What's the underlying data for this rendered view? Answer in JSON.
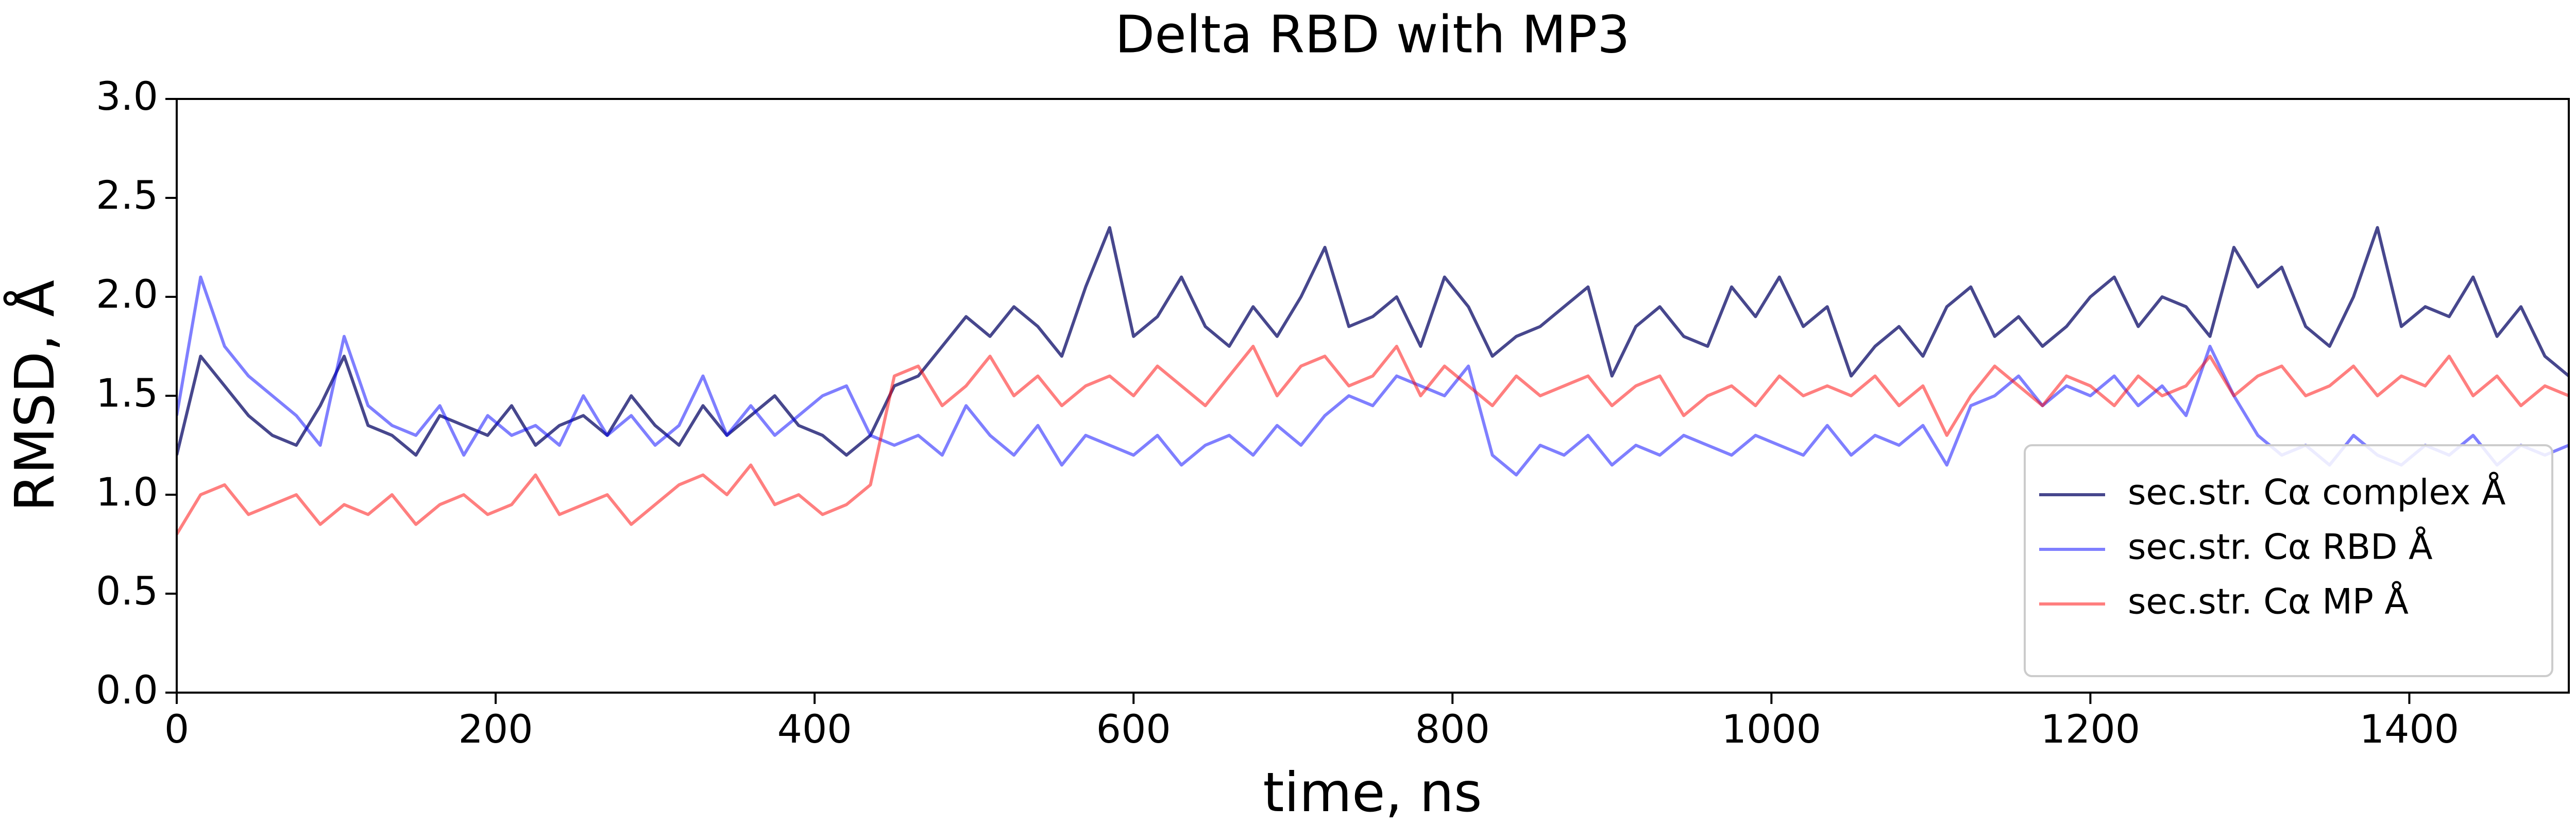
{
  "chart_data": {
    "type": "line",
    "title": "Delta RBD with MP3",
    "x_label": "time, ns",
    "y_label": "RMSD, Å",
    "x": [
      0,
      15,
      30,
      45,
      60,
      75,
      90,
      105,
      120,
      135,
      150,
      165,
      180,
      195,
      210,
      225,
      240,
      255,
      270,
      285,
      300,
      315,
      330,
      345,
      360,
      375,
      390,
      405,
      420,
      435,
      450,
      465,
      480,
      495,
      510,
      525,
      540,
      555,
      570,
      585,
      600,
      615,
      630,
      645,
      660,
      675,
      690,
      705,
      720,
      735,
      750,
      765,
      780,
      795,
      810,
      825,
      840,
      855,
      870,
      885,
      900,
      915,
      930,
      945,
      960,
      975,
      990,
      1005,
      1020,
      1035,
      1050,
      1065,
      1080,
      1095,
      1110,
      1125,
      1140,
      1155,
      1170,
      1185,
      1200,
      1215,
      1230,
      1245,
      1260,
      1275,
      1290,
      1305,
      1320,
      1335,
      1350,
      1365,
      1380,
      1395,
      1410,
      1425,
      1440,
      1455,
      1470,
      1485,
      1500
    ],
    "series": [
      {
        "name": "sec.str. Cα complex Å",
        "color": "#191970",
        "alpha": 0.8,
        "values": [
          1.2,
          1.7,
          1.55,
          1.4,
          1.3,
          1.25,
          1.45,
          1.7,
          1.35,
          1.3,
          1.2,
          1.4,
          1.35,
          1.3,
          1.45,
          1.25,
          1.35,
          1.4,
          1.3,
          1.5,
          1.35,
          1.25,
          1.45,
          1.3,
          1.4,
          1.5,
          1.35,
          1.3,
          1.2,
          1.3,
          1.55,
          1.6,
          1.75,
          1.9,
          1.8,
          1.95,
          1.85,
          1.7,
          2.05,
          2.35,
          1.8,
          1.9,
          2.1,
          1.85,
          1.75,
          1.95,
          1.8,
          2.0,
          2.25,
          1.85,
          1.9,
          2.0,
          1.75,
          2.1,
          1.95,
          1.7,
          1.8,
          1.85,
          1.95,
          2.05,
          1.6,
          1.85,
          1.95,
          1.8,
          1.75,
          2.05,
          1.9,
          2.1,
          1.85,
          1.95,
          1.6,
          1.75,
          1.85,
          1.7,
          1.95,
          2.05,
          1.8,
          1.9,
          1.75,
          1.85,
          2.0,
          2.1,
          1.85,
          2.0,
          1.95,
          1.8,
          2.25,
          2.05,
          2.15,
          1.85,
          1.75,
          2.0,
          2.35,
          1.85,
          1.95,
          1.9,
          2.1,
          1.8,
          1.95,
          1.7,
          1.6
        ]
      },
      {
        "name": "sec.str. Cα RBD Å",
        "color": "#0000ff",
        "alpha": 0.5,
        "values": [
          1.4,
          2.1,
          1.75,
          1.6,
          1.5,
          1.4,
          1.25,
          1.8,
          1.45,
          1.35,
          1.3,
          1.45,
          1.2,
          1.4,
          1.3,
          1.35,
          1.25,
          1.5,
          1.3,
          1.4,
          1.25,
          1.35,
          1.6,
          1.3,
          1.45,
          1.3,
          1.4,
          1.5,
          1.55,
          1.3,
          1.25,
          1.3,
          1.2,
          1.45,
          1.3,
          1.2,
          1.35,
          1.15,
          1.3,
          1.25,
          1.2,
          1.3,
          1.15,
          1.25,
          1.3,
          1.2,
          1.35,
          1.25,
          1.4,
          1.5,
          1.45,
          1.6,
          1.55,
          1.5,
          1.65,
          1.2,
          1.1,
          1.25,
          1.2,
          1.3,
          1.15,
          1.25,
          1.2,
          1.3,
          1.25,
          1.2,
          1.3,
          1.25,
          1.2,
          1.35,
          1.2,
          1.3,
          1.25,
          1.35,
          1.15,
          1.45,
          1.5,
          1.6,
          1.45,
          1.55,
          1.5,
          1.6,
          1.45,
          1.55,
          1.4,
          1.75,
          1.5,
          1.3,
          1.2,
          1.25,
          1.15,
          1.3,
          1.2,
          1.15,
          1.25,
          1.2,
          1.3,
          1.15,
          1.25,
          1.2,
          1.25
        ]
      },
      {
        "name": "sec.str. Cα MP Å",
        "color": "#ff0000",
        "alpha": 0.5,
        "values": [
          0.8,
          1.0,
          1.05,
          0.9,
          0.95,
          1.0,
          0.85,
          0.95,
          0.9,
          1.0,
          0.85,
          0.95,
          1.0,
          0.9,
          0.95,
          1.1,
          0.9,
          0.95,
          1.0,
          0.85,
          0.95,
          1.05,
          1.1,
          1.0,
          1.15,
          0.95,
          1.0,
          0.9,
          0.95,
          1.05,
          1.6,
          1.65,
          1.45,
          1.55,
          1.7,
          1.5,
          1.6,
          1.45,
          1.55,
          1.6,
          1.5,
          1.65,
          1.55,
          1.45,
          1.6,
          1.75,
          1.5,
          1.65,
          1.7,
          1.55,
          1.6,
          1.75,
          1.5,
          1.65,
          1.55,
          1.45,
          1.6,
          1.5,
          1.55,
          1.6,
          1.45,
          1.55,
          1.6,
          1.4,
          1.5,
          1.55,
          1.45,
          1.6,
          1.5,
          1.55,
          1.5,
          1.6,
          1.45,
          1.55,
          1.3,
          1.5,
          1.65,
          1.55,
          1.45,
          1.6,
          1.55,
          1.45,
          1.6,
          1.5,
          1.55,
          1.7,
          1.5,
          1.6,
          1.65,
          1.5,
          1.55,
          1.65,
          1.5,
          1.6,
          1.55,
          1.7,
          1.5,
          1.6,
          1.45,
          1.55,
          1.5
        ]
      }
    ],
    "xlim": [
      0,
      1500
    ],
    "xticks": [
      0,
      200,
      400,
      600,
      800,
      1000,
      1200,
      1400
    ],
    "ylim": [
      0,
      3
    ],
    "yticks": [
      {
        "value": 0,
        "label": "0.0"
      },
      0.5,
      {
        "value": 1,
        "label": "1.0"
      },
      1.5,
      {
        "value": 2,
        "label": "2.0"
      },
      2.5,
      {
        "value": 3,
        "label": "3.0"
      }
    ],
    "legend": "lower right"
  }
}
